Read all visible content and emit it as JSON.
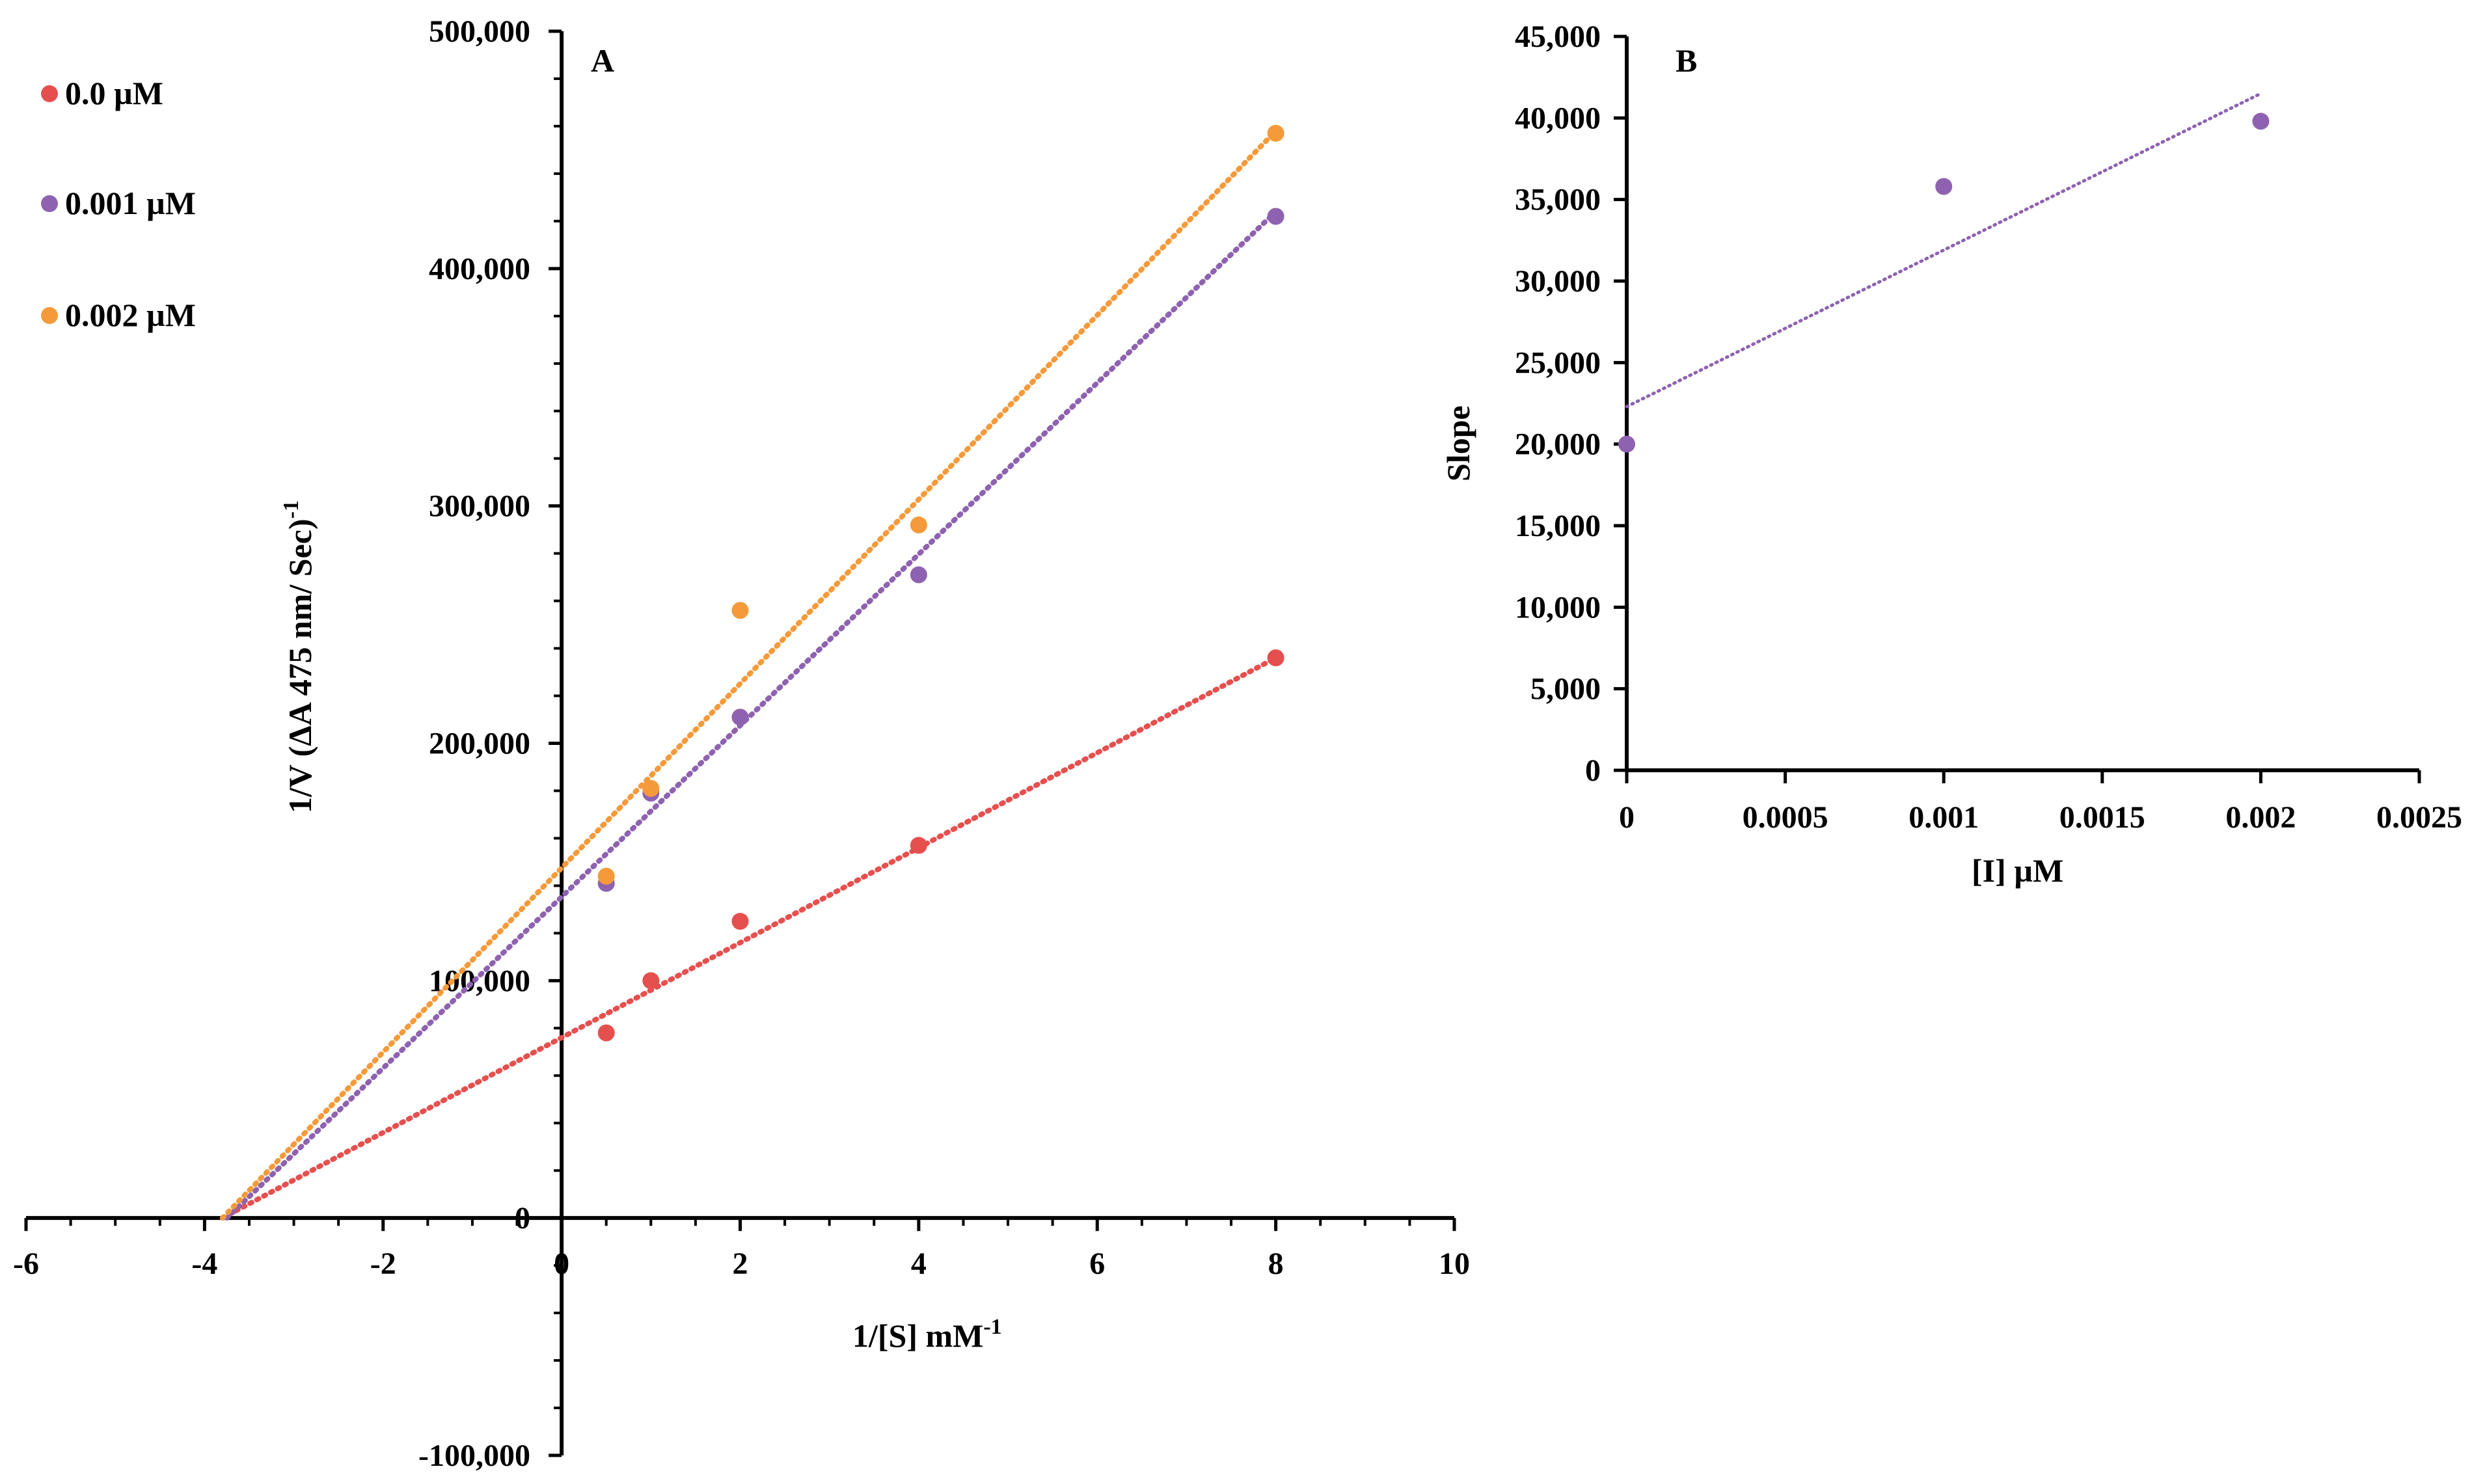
{
  "chart_data": [
    {
      "panel_label": "A",
      "type": "scatter",
      "xlabel": "1/[S] mM",
      "xlabel_sup": "-1",
      "ylabel": "1/V (ΔA 475 nm/ Sec)",
      "ylabel_sup": "-1",
      "xlim": [
        -6,
        10
      ],
      "ylim": [
        -100000,
        500000
      ],
      "xticks": [
        -6,
        -4,
        -2,
        0,
        2,
        4,
        6,
        8,
        10
      ],
      "xtick_labels": [
        "-6",
        "-4",
        "-2",
        "0",
        "2",
        "4",
        "6",
        "8",
        "10"
      ],
      "yticks": [
        -100000,
        0,
        100000,
        200000,
        300000,
        400000,
        500000
      ],
      "ytick_labels": [
        "-100,000",
        "0",
        "100,000",
        "200,000",
        "300,000",
        "400,000",
        "500,000"
      ],
      "legend_position": "top-left",
      "series": [
        {
          "name": "0.0 µM",
          "color": "#e5504f",
          "x": [
            0.5,
            1,
            2,
            4,
            8
          ],
          "y": [
            78000,
            100000,
            125000,
            157000,
            236000
          ],
          "trendline": {
            "x": [
              -3.8,
              8
            ],
            "y": [
              0,
              236000
            ]
          }
        },
        {
          "name": "0.001 µM",
          "color": "#8e62b0",
          "x": [
            0.5,
            1,
            2,
            4,
            8
          ],
          "y": [
            141000,
            179000,
            211000,
            271000,
            422000
          ],
          "trendline": {
            "x": [
              -3.75,
              8
            ],
            "y": [
              0,
              424000
            ]
          }
        },
        {
          "name": "0.002 µM",
          "color": "#f59a3a",
          "x": [
            0.5,
            1,
            2,
            4,
            8
          ],
          "y": [
            144000,
            181000,
            256000,
            292000,
            457000
          ],
          "trendline": {
            "x": [
              -3.8,
              8
            ],
            "y": [
              0,
              458000
            ]
          }
        }
      ]
    },
    {
      "panel_label": "B",
      "type": "scatter",
      "xlabel": "[I] µM",
      "ylabel": "Slope",
      "xlim": [
        0,
        0.0025
      ],
      "ylim": [
        0,
        45000
      ],
      "xticks": [
        0,
        0.0005,
        0.001,
        0.0015,
        0.002,
        0.0025
      ],
      "xtick_labels": [
        "0",
        "0.0005",
        "0.001",
        "0.0015",
        "0.002",
        "0.0025"
      ],
      "yticks": [
        0,
        5000,
        10000,
        15000,
        20000,
        25000,
        30000,
        35000,
        40000,
        45000
      ],
      "ytick_labels": [
        "0",
        "5,000",
        "10,000",
        "15,000",
        "20,000",
        "25,000",
        "30,000",
        "35,000",
        "40,000",
        "45,000"
      ],
      "series": [
        {
          "name": "Slope",
          "color": "#8e62b0",
          "x": [
            0,
            0.001,
            0.002
          ],
          "y": [
            20000,
            35800,
            39800
          ],
          "trendline": {
            "x": [
              0,
              0.002
            ],
            "y": [
              22300,
              41500
            ]
          }
        }
      ]
    }
  ]
}
